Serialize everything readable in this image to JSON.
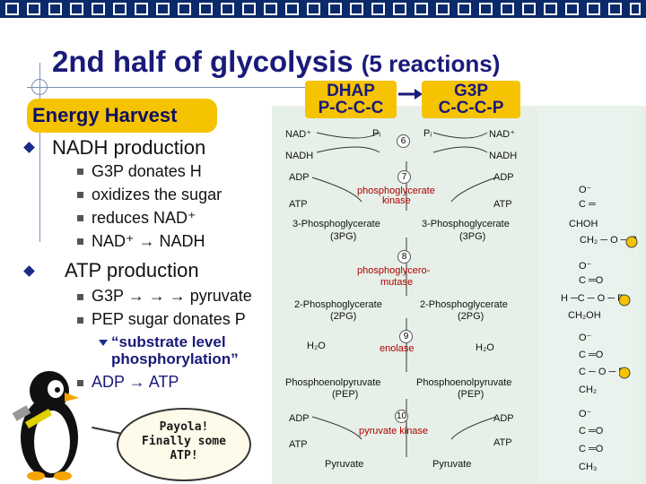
{
  "title": {
    "main": "2nd half of glycolysis",
    "sub": "(5 reactions)"
  },
  "energy_label": "Energy Harvest",
  "bullets": {
    "nadh": "NADH production",
    "nadh_items": [
      "G3P donates H",
      "oxidizes the sugar",
      "reduces NAD⁺",
      "NAD⁺ → NADH"
    ],
    "atp": "ATP production",
    "atp_items": [
      "G3P → → → pyruvate",
      "PEP sugar donates P"
    ],
    "substrate_1": "“substrate level",
    "substrate_2": "phosphorylation”",
    "adp_atp": "ADP → ATP"
  },
  "dhap": {
    "name": "DHAP",
    "formula": "P-C-C-C"
  },
  "g3p": {
    "name": "G3P",
    "formula": "C-C-C-P"
  },
  "pathway": {
    "nad_l": "NAD⁺",
    "pi_l": "Pᵢ",
    "step6": "6",
    "pi_r": "Pᵢ",
    "nad_r": "NAD⁺",
    "nadh_l": "NADH",
    "nadh_r": "NADH",
    "adp_l": "ADP",
    "step7": "7",
    "adp_r": "ADP",
    "enzyme7_1": "phosphoglycerate",
    "enzyme7_2": "kinase",
    "atp_l": "ATP",
    "atp_r": "ATP",
    "pg3_l": "3-Phosphoglycerate",
    "pg3_r": "3-Phosphoglycerate",
    "pg3_abbr": "(3PG)",
    "step8": "8",
    "enzyme8_1": "phosphoglycero-",
    "enzyme8_2": "mutase",
    "pg2_l": "2-Phosphoglycerate",
    "pg2_r": "2-Phosphoglycerate",
    "pg2_abbr": "(2PG)",
    "step9": "9",
    "h2o_l": "H₂O",
    "enzyme9": "enolase",
    "h2o_r": "H₂O",
    "pep_l": "Phosphoenolpyruvate",
    "pep_r": "Phosphoenolpyruvate",
    "pep_abbr": "(PEP)",
    "adp2_l": "ADP",
    "step10": "10",
    "adp2_r": "ADP",
    "enzyme10": "pyruvate kinase",
    "atp2_l": "ATP",
    "atp2_r": "ATP",
    "pyr_l": "Pyruvate",
    "pyr_r": "Pyruvate"
  },
  "molecules": {
    "m1": [
      "O⁻",
      "C ═",
      "CHOH",
      "CH₂ ─ O ─ P"
    ],
    "m2": [
      "O⁻",
      "C ═O",
      "H ─C ─ O ─ P",
      "CH₂OH"
    ],
    "m3": [
      "O⁻",
      "C ═O",
      "C ─ O ─ P",
      "CH₂"
    ],
    "m4": [
      "O⁻",
      "C ═O",
      "C ═O",
      "CH₃"
    ]
  },
  "bubble": [
    "Payola!",
    "Finally some",
    "ATP!"
  ],
  "colors": {
    "accent": "#f5c300",
    "title": "#1a1a7a",
    "topbar": "#0b2a6b",
    "enzyme": "#b00000"
  }
}
